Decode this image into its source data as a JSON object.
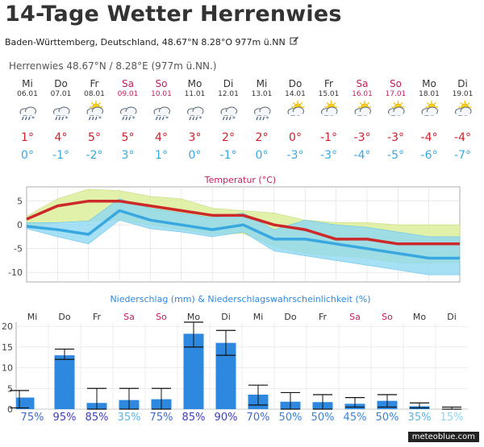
{
  "page": {
    "title": "14-Tage Wetter Herrenwies",
    "location": "Baden-Württemberg, Deutschland, 48.67°N 8.28°O 977m ü.NN",
    "station": "Herrenwies  48.67°N / 8.28°E (977m ü.NN.)",
    "watermark": "meteoblue.com"
  },
  "colors": {
    "weekend": "#c02060",
    "weekday": "#333333",
    "tmax": "#d02030",
    "tmin": "#3aa8e0",
    "precip_bar": "#2e88e0"
  },
  "days": [
    {
      "day": "Mi",
      "date": "06.01",
      "weekend": false,
      "icon": "rain-snow-icon",
      "tmax": "1°",
      "tmin": "0°",
      "precip_prob": "75%"
    },
    {
      "day": "Do",
      "date": "07.01",
      "weekend": false,
      "icon": "rain-snow-icon",
      "tmax": "4°",
      "tmin": "-1°",
      "precip_prob": "95%"
    },
    {
      "day": "Fr",
      "date": "08.01",
      "weekend": false,
      "icon": "sun-cloud-rain-icon",
      "tmax": "5°",
      "tmin": "-2°",
      "precip_prob": "85%"
    },
    {
      "day": "Sa",
      "date": "09.01",
      "weekend": true,
      "icon": "rain-snow-icon",
      "tmax": "5°",
      "tmin": "3°",
      "precip_prob": "35%"
    },
    {
      "day": "So",
      "date": "10.01",
      "weekend": true,
      "icon": "rain-snow-icon",
      "tmax": "4°",
      "tmin": "1°",
      "precip_prob": "75%"
    },
    {
      "day": "Mo",
      "date": "11.01",
      "weekend": false,
      "icon": "rain-snow-icon",
      "tmax": "3°",
      "tmin": "0°",
      "precip_prob": "85%"
    },
    {
      "day": "Di",
      "date": "12.01",
      "weekend": false,
      "icon": "rain-snow-icon",
      "tmax": "2°",
      "tmin": "-1°",
      "precip_prob": "90%"
    },
    {
      "day": "Mi",
      "date": "13.01",
      "weekend": false,
      "icon": "rain-snow-icon",
      "tmax": "2°",
      "tmin": "0°",
      "precip_prob": "70%"
    },
    {
      "day": "Do",
      "date": "14.01",
      "weekend": false,
      "icon": "sun-cloud-icon",
      "tmax": "0°",
      "tmin": "-3°",
      "precip_prob": "50%"
    },
    {
      "day": "Fr",
      "date": "15.01",
      "weekend": false,
      "icon": "sun-cloud-icon",
      "tmax": "-1°",
      "tmin": "-3°",
      "precip_prob": "50%"
    },
    {
      "day": "Sa",
      "date": "16.01",
      "weekend": true,
      "icon": "sun-cloud-icon",
      "tmax": "-3°",
      "tmin": "-4°",
      "precip_prob": "45%"
    },
    {
      "day": "So",
      "date": "17.01",
      "weekend": true,
      "icon": "sun-cloud-icon",
      "tmax": "-3°",
      "tmin": "-5°",
      "precip_prob": "50%"
    },
    {
      "day": "Mo",
      "date": "18.01",
      "weekend": false,
      "icon": "sun-cloud-icon",
      "tmax": "-4°",
      "tmin": "-6°",
      "precip_prob": "35%"
    },
    {
      "day": "Di",
      "date": "19.01",
      "weekend": false,
      "icon": "sun-cloud-icon",
      "tmax": "-4°",
      "tmin": "-7°",
      "precip_prob": "15%"
    }
  ],
  "chart_data": [
    {
      "type": "line",
      "title": "Temperatur (°C)",
      "x": [
        0,
        1,
        2,
        3,
        4,
        5,
        6,
        7,
        8,
        9,
        10,
        11,
        12,
        13,
        14
      ],
      "ylim": [
        -12,
        8
      ],
      "yticks": [
        -10,
        -5,
        0,
        5
      ],
      "grid": true,
      "series": [
        {
          "values": [
            1.2,
            4.0,
            5.0,
            5.0,
            4.0,
            3.0,
            2.0,
            2.0,
            0.0,
            -1.0,
            -3.0,
            -3.0,
            -4.0,
            -4.0,
            -4.0
          ]
        },
        {
          "values": [
            -0.3,
            -1.0,
            -2.0,
            3.0,
            1.0,
            0.0,
            -1.0,
            0.0,
            -3.0,
            -3.0,
            -4.0,
            -5.0,
            -6.0,
            -7.0,
            -7.0
          ]
        }
      ],
      "bands": [
        {
          "upper": [
            1.8,
            5.5,
            7.5,
            7.2,
            6.0,
            5.5,
            3.5,
            3.0,
            2.5,
            1.0,
            0.5,
            0.5,
            0.0,
            0.0,
            0.0
          ],
          "lower": [
            -0.5,
            0.5,
            0.8,
            1.0,
            0.0,
            -1.0,
            -2.0,
            -1.8,
            -4.5,
            -6.0,
            -6.5,
            -7.0,
            -8.0,
            -8.0,
            -8.0
          ]
        },
        {
          "upper": [
            0.5,
            0.5,
            0.8,
            5.5,
            3.5,
            2.5,
            1.5,
            2.5,
            -1.0,
            1.0,
            0.0,
            -0.5,
            -1.5,
            -2.5,
            -2.5
          ],
          "lower": [
            -0.8,
            -2.5,
            -4.0,
            1.0,
            -0.8,
            -1.5,
            -2.5,
            -1.5,
            -5.5,
            -6.5,
            -7.5,
            -8.5,
            -9.5,
            -10.5,
            -10.5
          ]
        }
      ]
    },
    {
      "type": "bar",
      "title": "Niederschlag (mm) & Niederschlagswahrscheinlichkeit (%)",
      "categories": [
        "Mi",
        "Do",
        "Fr",
        "Sa",
        "So",
        "Mo",
        "Di",
        "Mi",
        "Do",
        "Fr",
        "Sa",
        "So",
        "Mo",
        "Di"
      ],
      "values": [
        2.8,
        13.0,
        1.5,
        2.2,
        2.4,
        18.2,
        16.0,
        3.5,
        1.8,
        1.7,
        1.3,
        2.0,
        0.7,
        0.1
      ],
      "error_high": [
        4.5,
        14.5,
        5.0,
        5.0,
        5.0,
        21.0,
        19.0,
        5.8,
        4.0,
        3.5,
        2.8,
        3.5,
        1.5,
        0.5
      ],
      "error_low": [
        0.3,
        12.0,
        0.0,
        0.0,
        0.0,
        15.0,
        13.0,
        1.0,
        0.0,
        0.0,
        0.5,
        0.5,
        0.3,
        0.0
      ],
      "probabilities": [
        "75%",
        "95%",
        "85%",
        "35%",
        "75%",
        "85%",
        "90%",
        "70%",
        "50%",
        "50%",
        "45%",
        "50%",
        "35%",
        "15%"
      ],
      "ylim": [
        0,
        21
      ],
      "yticks": [
        0,
        5,
        10,
        15,
        20
      ],
      "grid": true
    }
  ]
}
